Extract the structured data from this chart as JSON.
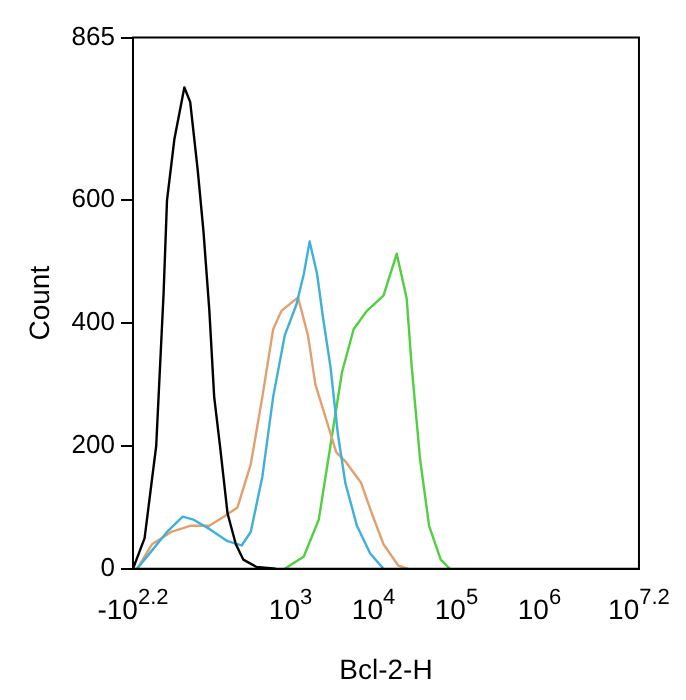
{
  "chart_data": {
    "type": "line",
    "xlabel": "Bcl-2-H",
    "ylabel": "Count",
    "log": "x",
    "xlim": [
      12.6,
      15849000
    ],
    "xticks": [
      {
        "value": 12.6,
        "label": "-10$^{2.2}$"
      },
      {
        "value": 1000,
        "label": "10$^{3}$"
      },
      {
        "value": 10000,
        "label": "10$^{4}$"
      },
      {
        "value": 100000,
        "label": "10$^{5}$"
      },
      {
        "value": 1000000,
        "label": "10$^{6}$"
      },
      {
        "value": 15849000,
        "label": "10$^{7.2}$"
      }
    ],
    "ylim": [
      0,
      865
    ],
    "yticks": [
      0,
      200,
      400,
      600,
      865
    ],
    "grid": false,
    "legend": false,
    "marker": "none",
    "line_style": "solid",
    "series": [
      {
        "color": "#000000",
        "x": [
          12.6,
          17.4,
          24.0,
          29.5,
          32.4,
          39.8,
          52.5,
          61.7,
          75.9,
          89.1,
          105,
          120,
          141,
          174,
          219,
          269,
          389,
          661
        ],
        "values": [
          0,
          50,
          200,
          450,
          600,
          700,
          784,
          760,
          650,
          550,
          420,
          280,
          200,
          90,
          40,
          15,
          3,
          0
        ]
      },
      {
        "color": "#3fb0d8",
        "x": [
          14.1,
          21.4,
          32.4,
          50.1,
          67.6,
          105,
          174,
          257,
          331,
          457,
          617,
          851,
          1175,
          1445,
          1698,
          2089,
          2455,
          3020,
          3715,
          4571,
          6310,
          9120,
          13183
        ],
        "values": [
          0,
          30,
          60,
          85,
          80,
          65,
          45,
          38,
          60,
          150,
          280,
          380,
          430,
          480,
          533,
          480,
          410,
          330,
          220,
          140,
          70,
          25,
          0
        ]
      },
      {
        "color": "#e0a070",
        "x": [
          14.1,
          21.4,
          36.3,
          61.7,
          105,
          158,
          229,
          331,
          457,
          617,
          776,
          1230,
          1622,
          1995,
          2884,
          3548,
          4571,
          7079,
          9550,
          13183,
          19953,
          26303
        ],
        "values": [
          0,
          40,
          60,
          70,
          70,
          85,
          100,
          170,
          280,
          390,
          420,
          442,
          380,
          300,
          230,
          190,
          175,
          140,
          90,
          40,
          5,
          0
        ]
      },
      {
        "color": "#50d040",
        "x": [
          851,
          1445,
          2188,
          3020,
          4169,
          5754,
          8318,
          13183,
          19055,
          25119,
          28840,
          36308,
          46774,
          64565,
          83176
        ],
        "values": [
          0,
          20,
          80,
          200,
          320,
          390,
          420,
          445,
          513,
          440,
          330,
          180,
          70,
          15,
          0
        ]
      }
    ]
  }
}
